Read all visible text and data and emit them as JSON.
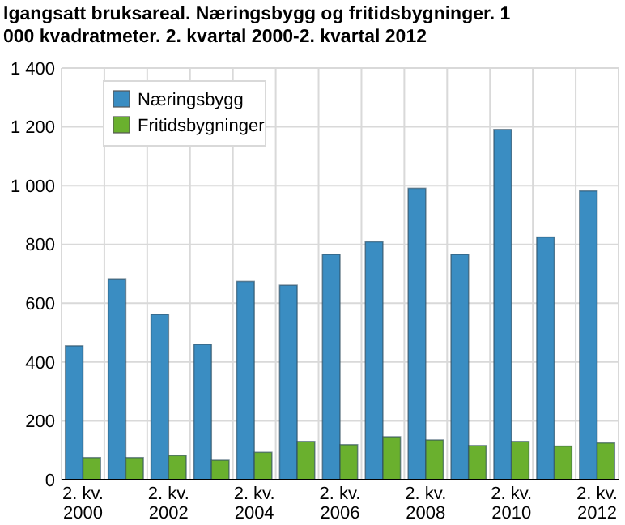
{
  "chart_data": {
    "type": "bar",
    "title": "Igangsatt bruksareal. Næringsbygg og fritidsbygninger. 1 000 kvadratmeter. 2. kvartal 2000-2. kvartal 2012",
    "categories": [
      "2. kv.\n2000",
      null,
      "2. kv.\n2002",
      null,
      "2. kv.\n2004",
      null,
      "2. kv.\n2006",
      null,
      "2. kv.\n2008",
      null,
      "2. kv.\n2010",
      null,
      "2. kv.\n2012"
    ],
    "series": [
      {
        "name": "Næringsbygg",
        "color": "#3a8dc2",
        "values": [
          455,
          683,
          562,
          460,
          674,
          661,
          766,
          809,
          991,
          766,
          1191,
          825,
          982
        ]
      },
      {
        "name": "Fritidsbygninger",
        "color": "#6ab02e",
        "values": [
          75,
          75,
          82,
          66,
          93,
          130,
          119,
          146,
          135,
          116,
          130,
          114,
          125
        ]
      }
    ],
    "ylim": [
      0,
      1400
    ],
    "yticks": [
      {
        "value": 0,
        "label": "0"
      },
      {
        "value": 200,
        "label": "200"
      },
      {
        "value": 400,
        "label": "400"
      },
      {
        "value": 600,
        "label": "600"
      },
      {
        "value": 800,
        "label": "800"
      },
      {
        "value": 1000,
        "label": "1 000"
      },
      {
        "value": 1200,
        "label": "1 200"
      },
      {
        "value": 1400,
        "label": "1 400"
      }
    ],
    "grid": true,
    "legend": "top left"
  }
}
